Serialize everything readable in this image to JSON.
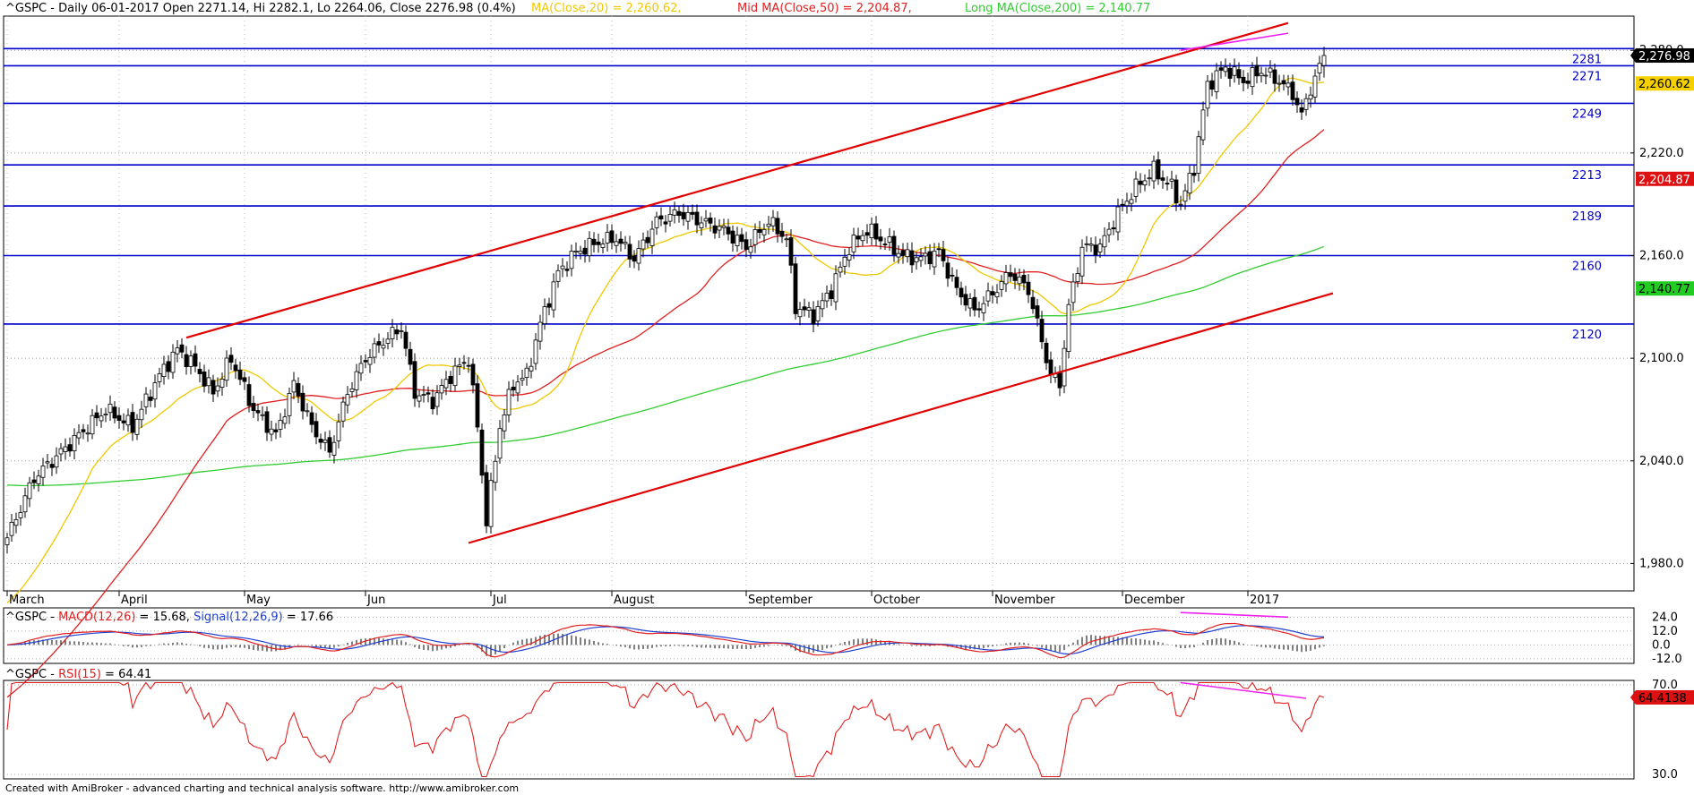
{
  "header": {
    "symbol": "^GSPC",
    "info": "^GSPC - Daily 06-01-2017 Open 2271.14, Hi 2282.1, Lo 2264.06, Close 2276.98 (0.4%)",
    "ma20": "MA(Close,20) = 2,260.62,",
    "ma50": "Mid MA(Close,50) = 2,204.87,",
    "ma200": "Long MA(Close,200) = 2,140.77"
  },
  "footer": "Created with AmiBroker - advanced charting and technical analysis software. http://www.amibroker.com",
  "colors": {
    "up_candle": "#ffffff",
    "down_candle": "#000000",
    "ma20": "#f0c800",
    "ma50": "#e02020",
    "ma200": "#33cc33",
    "hlines": "#0000cc",
    "trend": "#e00000",
    "divergence": "#ee22ee",
    "macd": "#e02020",
    "signal": "#2040d0",
    "rsi": "#e02020"
  },
  "chart_data": [
    {
      "type": "candlestick",
      "symbol": "^GSPC",
      "period": "Daily",
      "last_bar": {
        "date": "06-01-2017",
        "open": 2271.14,
        "high": 2282.1,
        "low": 2264.06,
        "close": 2276.98,
        "change_pct": 0.4
      },
      "x_labels": [
        "March",
        "April",
        "May",
        "Jun",
        "Jul",
        "August",
        "September",
        "October",
        "November",
        "December",
        "2017"
      ],
      "y_ticks": [
        1980,
        2040,
        2100,
        2160,
        2220,
        2280
      ],
      "y_tick_labels": [
        "1,980.0",
        "2,040.0",
        "2,100.0",
        "2,160.0",
        "2,220.0",
        "2,280.0"
      ],
      "ylim": [
        1964,
        2300
      ],
      "grid": true,
      "horizontal_levels": [
        2281,
        2271,
        2249,
        2213,
        2189,
        2160,
        2120
      ],
      "series": [
        {
          "name": "MA(Close,20)",
          "last": 2260.62,
          "last_label": "2,260.62"
        },
        {
          "name": "Mid MA(Close,50)",
          "last": 2204.87,
          "last_label": "2,204.87"
        },
        {
          "name": "Long MA(Close,200)",
          "last": 2140.77,
          "last_label": "2,140.77"
        }
      ],
      "last_close_label": "2,276.98",
      "anchors": [
        {
          "b": 0,
          "c": 1995
        },
        {
          "b": 6,
          "c": 2030
        },
        {
          "b": 14,
          "c": 2050
        },
        {
          "b": 22,
          "c": 2070
        },
        {
          "b": 28,
          "c": 2060
        },
        {
          "b": 34,
          "c": 2090
        },
        {
          "b": 38,
          "c": 2105
        },
        {
          "b": 42,
          "c": 2095
        },
        {
          "b": 46,
          "c": 2080
        },
        {
          "b": 50,
          "c": 2100
        },
        {
          "b": 55,
          "c": 2070
        },
        {
          "b": 60,
          "c": 2055
        },
        {
          "b": 64,
          "c": 2085
        },
        {
          "b": 68,
          "c": 2060
        },
        {
          "b": 72,
          "c": 2045
        },
        {
          "b": 76,
          "c": 2080
        },
        {
          "b": 80,
          "c": 2100
        },
        {
          "b": 84,
          "c": 2110
        },
        {
          "b": 88,
          "c": 2118
        },
        {
          "b": 91,
          "c": 2080
        },
        {
          "b": 95,
          "c": 2075
        },
        {
          "b": 99,
          "c": 2090
        },
        {
          "b": 103,
          "c": 2100
        },
        {
          "b": 105,
          "c": 2060
        },
        {
          "b": 107,
          "c": 2005
        },
        {
          "b": 110,
          "c": 2060
        },
        {
          "b": 113,
          "c": 2085
        },
        {
          "b": 116,
          "c": 2090
        },
        {
          "b": 119,
          "c": 2120
        },
        {
          "b": 123,
          "c": 2150
        },
        {
          "b": 127,
          "c": 2162
        },
        {
          "b": 132,
          "c": 2168
        },
        {
          "b": 136,
          "c": 2170
        },
        {
          "b": 140,
          "c": 2158
        },
        {
          "b": 145,
          "c": 2180
        },
        {
          "b": 150,
          "c": 2185
        },
        {
          "b": 155,
          "c": 2180
        },
        {
          "b": 160,
          "c": 2175
        },
        {
          "b": 165,
          "c": 2165
        },
        {
          "b": 170,
          "c": 2180
        },
        {
          "b": 174,
          "c": 2170
        },
        {
          "b": 176,
          "c": 2130
        },
        {
          "b": 180,
          "c": 2125
        },
        {
          "b": 184,
          "c": 2140
        },
        {
          "b": 188,
          "c": 2165
        },
        {
          "b": 192,
          "c": 2175
        },
        {
          "b": 196,
          "c": 2168
        },
        {
          "b": 200,
          "c": 2160
        },
        {
          "b": 204,
          "c": 2158
        },
        {
          "b": 208,
          "c": 2162
        },
        {
          "b": 212,
          "c": 2140
        },
        {
          "b": 216,
          "c": 2128
        },
        {
          "b": 220,
          "c": 2138
        },
        {
          "b": 224,
          "c": 2150
        },
        {
          "b": 228,
          "c": 2140
        },
        {
          "b": 230,
          "c": 2120
        },
        {
          "b": 233,
          "c": 2090
        },
        {
          "b": 235,
          "c": 2085
        },
        {
          "b": 237,
          "c": 2130
        },
        {
          "b": 240,
          "c": 2165
        },
        {
          "b": 244,
          "c": 2165
        },
        {
          "b": 248,
          "c": 2185
        },
        {
          "b": 252,
          "c": 2200
        },
        {
          "b": 256,
          "c": 2210
        },
        {
          "b": 260,
          "c": 2200
        },
        {
          "b": 262,
          "c": 2190
        },
        {
          "b": 265,
          "c": 2212
        },
        {
          "b": 268,
          "c": 2260
        },
        {
          "b": 272,
          "c": 2270
        },
        {
          "b": 276,
          "c": 2262
        },
        {
          "b": 280,
          "c": 2268
        },
        {
          "b": 284,
          "c": 2262
        },
        {
          "b": 287,
          "c": 2255
        },
        {
          "b": 289,
          "c": 2242
        },
        {
          "b": 291,
          "c": 2258
        },
        {
          "b": 293,
          "c": 2270
        },
        {
          "b": 294,
          "c": 2276.98
        }
      ]
    },
    {
      "type": "line",
      "title": "^GSPC - MACD(12,26) = 15.68, Signal(12,26,9) = 17.66",
      "series": [
        {
          "name": "MACD(12,26)",
          "last": 15.68
        },
        {
          "name": "Signal(12,26,9)",
          "last": 17.66
        }
      ],
      "y_ticks": [
        24,
        12,
        0,
        -12
      ],
      "y_tick_labels": [
        "24.0",
        "12.0",
        "0.0",
        "-12.0"
      ],
      "ylim": [
        -16,
        32
      ]
    },
    {
      "type": "line",
      "title": "^GSPC - RSI(15) = 64.41",
      "series": [
        {
          "name": "RSI(15)",
          "last": 64.41,
          "last_label": "64.4138"
        }
      ],
      "y_ticks": [
        70,
        30
      ],
      "y_tick_labels": [
        "70.0",
        "30.0"
      ],
      "ylim": [
        28,
        72
      ]
    }
  ]
}
